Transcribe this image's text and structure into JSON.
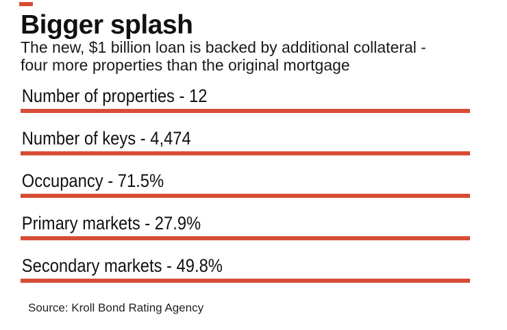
{
  "accent_color": "#d74c35",
  "text_color": "#111111",
  "header": {
    "title": "Bigger splash",
    "subtitle_line1": "The new, $1 billion loan is backed by additional collateral -",
    "subtitle_line2": "four more properties than the original mortgage"
  },
  "chart_data": {
    "type": "table",
    "title": "Bigger splash",
    "subtitle": "The new, $1 billion loan is backed by additional collateral - four more properties than the original mortgage",
    "rows": [
      {
        "label": "Number of properties",
        "value": "12",
        "display": "Number of properties - 12"
      },
      {
        "label": "Number of keys",
        "value": "4,474",
        "display": "Number of keys - 4,474"
      },
      {
        "label": "Occupancy",
        "value": "71.5%",
        "display": "Occupancy - 71.5%"
      },
      {
        "label": "Primary markets",
        "value": "27.9%",
        "display": "Primary markets - 27.9%"
      },
      {
        "label": "Secondary markets",
        "value": "49.8%",
        "display": "Secondary markets - 49.8%"
      }
    ],
    "source": "Source: Kroll Bond Rating Agency",
    "layout": {
      "legend": "none",
      "grid": "none",
      "style": "stat-list-with-red-rules"
    }
  },
  "footer": {
    "source": "Source: Kroll Bond Rating Agency"
  }
}
